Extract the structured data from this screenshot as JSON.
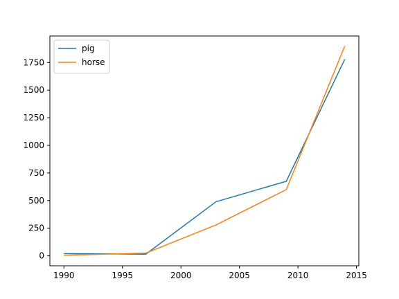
{
  "chart_data": {
    "type": "line",
    "title": "",
    "xlabel": "",
    "ylabel": "",
    "xlim": [
      1988.8,
      2015.2
    ],
    "ylim": [
      -90,
      1990
    ],
    "x_ticks": [
      1990,
      1995,
      2000,
      2005,
      2010,
      2015
    ],
    "y_ticks": [
      0,
      250,
      500,
      750,
      1000,
      1250,
      1500,
      1750
    ],
    "grid": false,
    "legend_position": "top-left",
    "series": [
      {
        "name": "pig",
        "color": "#1f77b4",
        "x": [
          1990,
          1997,
          2003,
          2009,
          2014
        ],
        "y": [
          20,
          15,
          490,
          675,
          1780
        ]
      },
      {
        "name": "horse",
        "color": "#ff7f0e",
        "x": [
          1990,
          1997,
          2003,
          2009,
          2014
        ],
        "y": [
          5,
          25,
          280,
          600,
          1900
        ]
      }
    ]
  }
}
